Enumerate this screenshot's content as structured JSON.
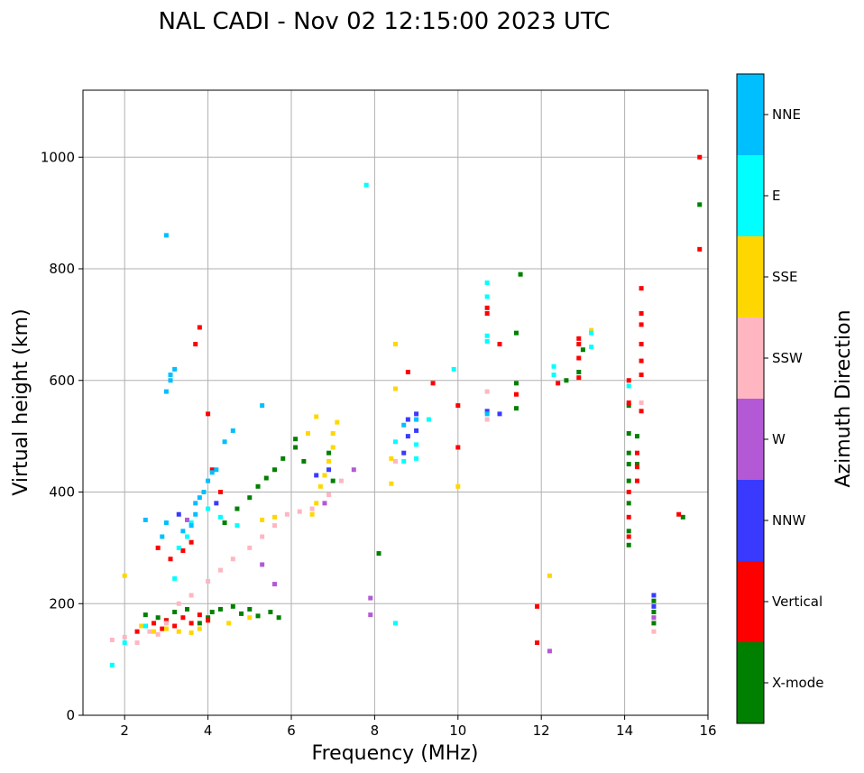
{
  "chart_data": {
    "type": "scatter",
    "title": "NAL CADI - Nov 02 12:15:00 2023 UTC",
    "xlabel": "Frequency (MHz)",
    "ylabel": "Virtual height (km)",
    "xlim": [
      1,
      16
    ],
    "ylim": [
      0,
      1120
    ],
    "xticks": [
      2,
      4,
      6,
      8,
      10,
      12,
      14,
      16
    ],
    "yticks": [
      0,
      200,
      400,
      600,
      800,
      1000
    ],
    "grid": true,
    "colorbar": {
      "label": "Azimuth Direction",
      "categories": [
        "X-mode",
        "Vertical",
        "NNW",
        "W",
        "SSW",
        "SSE",
        "E",
        "NNE"
      ],
      "colors": [
        "#008000",
        "#ff0000",
        "#3a3aff",
        "#b359d6",
        "#ffb6c1",
        "#ffd700",
        "#00ffff",
        "#00bfff"
      ]
    },
    "series": [
      {
        "name": "X-mode",
        "points": [
          [
            2.5,
            180
          ],
          [
            2.8,
            175
          ],
          [
            3.0,
            170
          ],
          [
            3.2,
            185
          ],
          [
            3.5,
            190
          ],
          [
            3.8,
            165
          ],
          [
            4.0,
            175
          ],
          [
            4.1,
            185
          ],
          [
            4.3,
            190
          ],
          [
            4.6,
            195
          ],
          [
            4.8,
            182
          ],
          [
            5.0,
            190
          ],
          [
            5.2,
            178
          ],
          [
            5.5,
            185
          ],
          [
            5.7,
            175
          ],
          [
            4.4,
            345
          ],
          [
            4.7,
            370
          ],
          [
            5.0,
            390
          ],
          [
            5.2,
            410
          ],
          [
            5.4,
            425
          ],
          [
            5.6,
            440
          ],
          [
            5.8,
            460
          ],
          [
            6.1,
            480
          ],
          [
            6.1,
            495
          ],
          [
            6.3,
            455
          ],
          [
            6.9,
            470
          ],
          [
            7.0,
            420
          ],
          [
            8.1,
            290
          ],
          [
            11.4,
            550
          ],
          [
            11.4,
            595
          ],
          [
            11.4,
            685
          ],
          [
            11.5,
            790
          ],
          [
            12.6,
            600
          ],
          [
            12.9,
            615
          ],
          [
            13.0,
            655
          ],
          [
            14.1,
            305
          ],
          [
            14.1,
            330
          ],
          [
            14.1,
            380
          ],
          [
            14.1,
            420
          ],
          [
            14.1,
            450
          ],
          [
            14.1,
            470
          ],
          [
            14.1,
            505
          ],
          [
            14.1,
            555
          ],
          [
            14.3,
            450
          ],
          [
            14.3,
            500
          ],
          [
            14.7,
            165
          ],
          [
            14.7,
            185
          ],
          [
            14.7,
            205
          ],
          [
            15.4,
            355
          ],
          [
            15.8,
            915
          ]
        ]
      },
      {
        "name": "Vertical",
        "points": [
          [
            2.3,
            150
          ],
          [
            2.5,
            160
          ],
          [
            2.7,
            165
          ],
          [
            2.9,
            155
          ],
          [
            3.0,
            170
          ],
          [
            3.2,
            160
          ],
          [
            3.4,
            175
          ],
          [
            3.6,
            165
          ],
          [
            3.8,
            180
          ],
          [
            4.0,
            170
          ],
          [
            2.8,
            300
          ],
          [
            3.1,
            280
          ],
          [
            3.4,
            295
          ],
          [
            3.6,
            310
          ],
          [
            3.7,
            665
          ],
          [
            3.8,
            695
          ],
          [
            4.0,
            540
          ],
          [
            4.3,
            400
          ],
          [
            4.1,
            440
          ],
          [
            8.8,
            615
          ],
          [
            9.4,
            595
          ],
          [
            10.0,
            480
          ],
          [
            10.0,
            555
          ],
          [
            10.7,
            720
          ],
          [
            10.7,
            730
          ],
          [
            11.0,
            665
          ],
          [
            11.4,
            575
          ],
          [
            11.9,
            195
          ],
          [
            11.9,
            130
          ],
          [
            12.4,
            595
          ],
          [
            12.9,
            665
          ],
          [
            12.9,
            675
          ],
          [
            12.9,
            640
          ],
          [
            12.9,
            605
          ],
          [
            14.1,
            320
          ],
          [
            14.1,
            355
          ],
          [
            14.1,
            400
          ],
          [
            14.1,
            560
          ],
          [
            14.1,
            600
          ],
          [
            14.3,
            420
          ],
          [
            14.3,
            445
          ],
          [
            14.3,
            470
          ],
          [
            14.4,
            545
          ],
          [
            14.4,
            610
          ],
          [
            14.4,
            635
          ],
          [
            14.4,
            665
          ],
          [
            14.4,
            700
          ],
          [
            14.4,
            720
          ],
          [
            14.4,
            765
          ],
          [
            15.3,
            360
          ],
          [
            15.8,
            835
          ],
          [
            15.8,
            1000
          ]
        ]
      },
      {
        "name": "NNW",
        "points": [
          [
            3.3,
            360
          ],
          [
            4.2,
            380
          ],
          [
            6.6,
            430
          ],
          [
            6.9,
            440
          ],
          [
            8.7,
            470
          ],
          [
            8.8,
            500
          ],
          [
            8.8,
            530
          ],
          [
            9.0,
            510
          ],
          [
            9.0,
            540
          ],
          [
            10.7,
            545
          ],
          [
            11.0,
            540
          ],
          [
            14.7,
            195
          ],
          [
            14.7,
            215
          ]
        ]
      },
      {
        "name": "W",
        "points": [
          [
            3.5,
            350
          ],
          [
            5.3,
            270
          ],
          [
            5.6,
            235
          ],
          [
            6.8,
            380
          ],
          [
            7.5,
            440
          ],
          [
            7.9,
            210
          ],
          [
            7.9,
            180
          ],
          [
            12.2,
            115
          ],
          [
            14.7,
            175
          ]
        ]
      },
      {
        "name": "SSW",
        "points": [
          [
            1.7,
            135
          ],
          [
            2.0,
            140
          ],
          [
            2.3,
            130
          ],
          [
            2.6,
            150
          ],
          [
            2.8,
            145
          ],
          [
            3.0,
            165
          ],
          [
            3.3,
            200
          ],
          [
            3.6,
            215
          ],
          [
            4.0,
            240
          ],
          [
            4.3,
            260
          ],
          [
            4.6,
            280
          ],
          [
            5.0,
            300
          ],
          [
            5.3,
            320
          ],
          [
            5.6,
            340
          ],
          [
            5.9,
            360
          ],
          [
            6.2,
            365
          ],
          [
            6.5,
            370
          ],
          [
            6.9,
            395
          ],
          [
            7.2,
            420
          ],
          [
            8.5,
            455
          ],
          [
            10.7,
            530
          ],
          [
            10.7,
            580
          ],
          [
            14.4,
            560
          ],
          [
            14.7,
            150
          ]
        ]
      },
      {
        "name": "SSE",
        "points": [
          [
            2.0,
            250
          ],
          [
            2.4,
            160
          ],
          [
            2.7,
            150
          ],
          [
            3.0,
            155
          ],
          [
            3.3,
            150
          ],
          [
            3.6,
            148
          ],
          [
            3.8,
            155
          ],
          [
            4.5,
            165
          ],
          [
            5.0,
            175
          ],
          [
            5.3,
            350
          ],
          [
            5.6,
            355
          ],
          [
            6.5,
            360
          ],
          [
            6.6,
            380
          ],
          [
            6.7,
            410
          ],
          [
            6.8,
            430
          ],
          [
            6.9,
            455
          ],
          [
            7.0,
            480
          ],
          [
            7.0,
            505
          ],
          [
            7.1,
            525
          ],
          [
            6.4,
            505
          ],
          [
            6.6,
            535
          ],
          [
            8.4,
            415
          ],
          [
            8.4,
            460
          ],
          [
            8.5,
            585
          ],
          [
            8.5,
            665
          ],
          [
            10.0,
            410
          ],
          [
            12.2,
            250
          ],
          [
            13.2,
            690
          ]
        ]
      },
      {
        "name": "E",
        "points": [
          [
            1.7,
            90
          ],
          [
            2.0,
            130
          ],
          [
            2.5,
            160
          ],
          [
            3.2,
            245
          ],
          [
            3.3,
            300
          ],
          [
            3.5,
            320
          ],
          [
            3.6,
            345
          ],
          [
            4.0,
            370
          ],
          [
            4.3,
            355
          ],
          [
            4.7,
            340
          ],
          [
            7.8,
            950
          ],
          [
            8.5,
            165
          ],
          [
            8.5,
            490
          ],
          [
            8.7,
            455
          ],
          [
            9.0,
            485
          ],
          [
            9.0,
            460
          ],
          [
            9.3,
            530
          ],
          [
            9.9,
            620
          ],
          [
            10.7,
            670
          ],
          [
            10.7,
            680
          ],
          [
            10.7,
            750
          ],
          [
            10.7,
            775
          ],
          [
            12.3,
            610
          ],
          [
            12.3,
            625
          ],
          [
            13.2,
            660
          ],
          [
            13.2,
            685
          ],
          [
            14.1,
            590
          ]
        ]
      },
      {
        "name": "NNE",
        "points": [
          [
            2.5,
            350
          ],
          [
            2.9,
            320
          ],
          [
            3.0,
            345
          ],
          [
            3.0,
            580
          ],
          [
            3.1,
            600
          ],
          [
            3.1,
            610
          ],
          [
            3.2,
            620
          ],
          [
            3.0,
            860
          ],
          [
            3.4,
            330
          ],
          [
            3.6,
            340
          ],
          [
            3.7,
            360
          ],
          [
            3.7,
            380
          ],
          [
            3.8,
            390
          ],
          [
            3.9,
            400
          ],
          [
            4.0,
            420
          ],
          [
            4.1,
            435
          ],
          [
            4.2,
            440
          ],
          [
            4.4,
            490
          ],
          [
            4.6,
            510
          ],
          [
            5.3,
            555
          ],
          [
            8.7,
            520
          ],
          [
            9.0,
            530
          ],
          [
            10.7,
            540
          ]
        ]
      }
    ]
  }
}
